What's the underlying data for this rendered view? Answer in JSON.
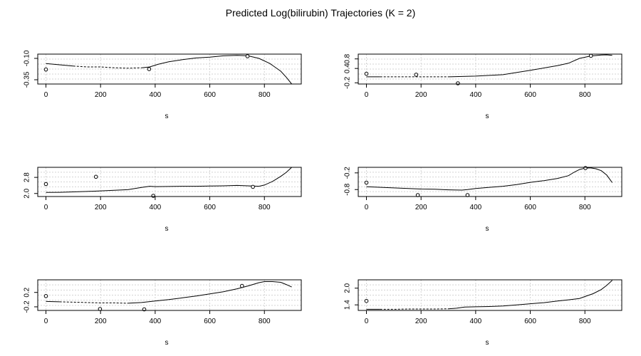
{
  "figure": {
    "title": "Predicted Log(bilirubin) Trajectories (K = 2)"
  },
  "chart_data": [
    {
      "type": "line",
      "xlabel": "s",
      "ylabel": "",
      "xlim": [
        -30,
        935
      ],
      "ylim": [
        -0.4,
        -0.05
      ],
      "xticks": [
        0,
        200,
        400,
        600,
        800
      ],
      "yticks": [
        -0.35,
        -0.1
      ],
      "ytick_labels": [
        "-0.35",
        "-0.10"
      ],
      "grid": true,
      "series": [
        {
          "style": "solid",
          "x": [
            0,
            100
          ],
          "y": [
            -0.16,
            -0.19
          ]
        },
        {
          "style": "dashed",
          "x": [
            100,
            150,
            200,
            250,
            300,
            350
          ],
          "y": [
            -0.19,
            -0.2,
            -0.2,
            -0.21,
            -0.215,
            -0.21
          ]
        },
        {
          "style": "solid",
          "x": [
            350,
            380,
            410,
            450,
            500,
            550,
            600,
            650,
            700,
            740,
            780,
            820,
            860,
            880,
            900
          ],
          "y": [
            -0.21,
            -0.2,
            -0.17,
            -0.14,
            -0.115,
            -0.095,
            -0.085,
            -0.07,
            -0.065,
            -0.07,
            -0.1,
            -0.16,
            -0.25,
            -0.32,
            -0.4
          ]
        }
      ],
      "points": {
        "x": [
          0,
          378,
          738
        ],
        "y": [
          -0.23,
          -0.225,
          -0.075
        ]
      }
    },
    {
      "type": "line",
      "xlabel": "s",
      "ylabel": "",
      "xlim": [
        -30,
        935
      ],
      "ylim": [
        -0.25,
        1.0
      ],
      "xticks": [
        0,
        200,
        400,
        600,
        800
      ],
      "yticks": [
        -0.2,
        0.4,
        0.8
      ],
      "ytick_labels": [
        "-0.2",
        "0.4",
        "0.8"
      ],
      "grid": true,
      "series": [
        {
          "style": "solid",
          "x": [
            0,
            50
          ],
          "y": [
            0.05,
            0.05
          ]
        },
        {
          "style": "dashed",
          "x": [
            50,
            100,
            150,
            200,
            250,
            300
          ],
          "y": [
            0.05,
            0.05,
            0.05,
            0.05,
            0.05,
            0.05
          ]
        },
        {
          "style": "solid",
          "x": [
            300,
            400,
            500,
            600,
            700,
            740,
            780,
            820,
            860,
            880,
            900
          ],
          "y": [
            0.05,
            0.08,
            0.14,
            0.32,
            0.52,
            0.62,
            0.82,
            0.92,
            0.96,
            0.97,
            0.95
          ]
        }
      ],
      "points": {
        "x": [
          0,
          182,
          335,
          822
        ],
        "y": [
          0.18,
          0.14,
          -0.22,
          0.93
        ]
      }
    },
    {
      "type": "line",
      "xlabel": "s",
      "ylabel": "",
      "xlim": [
        -30,
        935
      ],
      "ylim": [
        1.85,
        3.3
      ],
      "xticks": [
        0,
        200,
        400,
        600,
        800
      ],
      "yticks": [
        2.0,
        2.8
      ],
      "ytick_labels": [
        "2.0",
        "2.8"
      ],
      "grid": true,
      "series": [
        {
          "style": "solid",
          "x": [
            0,
            50,
            100,
            150,
            200,
            250,
            300,
            350,
            380,
            400,
            450,
            500,
            550,
            600,
            650,
            700,
            740,
            780,
            800,
            830,
            860,
            880,
            900
          ],
          "y": [
            2.05,
            2.06,
            2.08,
            2.1,
            2.13,
            2.16,
            2.19,
            2.3,
            2.36,
            2.34,
            2.35,
            2.36,
            2.36,
            2.37,
            2.38,
            2.4,
            2.38,
            2.36,
            2.42,
            2.6,
            2.85,
            3.05,
            3.3
          ]
        }
      ],
      "points": {
        "x": [
          0,
          183,
          393,
          758
        ],
        "y": [
          2.47,
          2.83,
          1.88,
          2.33
        ]
      }
    },
    {
      "type": "line",
      "xlabel": "s",
      "ylabel": "",
      "xlim": [
        -30,
        935
      ],
      "ylim": [
        -1.05,
        0.0
      ],
      "xticks": [
        0,
        200,
        400,
        600,
        800
      ],
      "yticks": [
        -0.8,
        -0.2
      ],
      "ytick_labels": [
        "-0.8",
        "-0.2"
      ],
      "grid": true,
      "series": [
        {
          "style": "solid",
          "x": [
            0,
            100,
            200,
            250,
            300,
            350,
            370,
            400,
            450,
            500,
            550,
            600,
            650,
            700,
            740,
            760,
            780,
            800,
            820,
            840,
            860,
            880,
            900
          ],
          "y": [
            -0.7,
            -0.74,
            -0.78,
            -0.79,
            -0.81,
            -0.82,
            -0.8,
            -0.76,
            -0.72,
            -0.68,
            -0.62,
            -0.54,
            -0.48,
            -0.4,
            -0.3,
            -0.18,
            -0.08,
            -0.03,
            -0.02,
            -0.05,
            -0.12,
            -0.28,
            -0.55
          ]
        }
      ],
      "points": {
        "x": [
          0,
          188,
          370,
          802
        ],
        "y": [
          -0.55,
          -1.0,
          -1.0,
          -0.01
        ]
      }
    },
    {
      "type": "line",
      "xlabel": "s",
      "ylabel": "",
      "xlim": [
        -30,
        935
      ],
      "ylim": [
        -0.3,
        0.55
      ],
      "xticks": [
        0,
        200,
        400,
        600,
        800
      ],
      "yticks": [
        -0.2,
        0.2
      ],
      "ytick_labels": [
        "-0.2",
        "0.2"
      ],
      "grid": true,
      "series": [
        {
          "style": "solid",
          "x": [
            0,
            50
          ],
          "y": [
            -0.05,
            -0.06
          ]
        },
        {
          "style": "dashed",
          "x": [
            50,
            100,
            150,
            200,
            250,
            300
          ],
          "y": [
            -0.06,
            -0.07,
            -0.08,
            -0.09,
            -0.09,
            -0.1
          ]
        },
        {
          "style": "solid",
          "x": [
            300,
            350,
            400,
            450,
            500,
            550,
            600,
            650,
            700,
            740,
            780,
            800,
            830,
            860,
            880,
            900
          ],
          "y": [
            -0.1,
            -0.08,
            -0.04,
            0.0,
            0.05,
            0.1,
            0.16,
            0.22,
            0.3,
            0.38,
            0.47,
            0.5,
            0.5,
            0.48,
            0.42,
            0.35
          ]
        }
      ],
      "points": {
        "x": [
          0,
          198,
          360,
          718
        ],
        "y": [
          0.1,
          -0.26,
          -0.27,
          0.38
        ]
      }
    },
    {
      "type": "line",
      "xlabel": "s",
      "ylabel": "",
      "xlim": [
        -30,
        935
      ],
      "ylim": [
        1.2,
        2.3
      ],
      "xticks": [
        0,
        200,
        400,
        600,
        800
      ],
      "yticks": [
        1.4,
        2.0
      ],
      "ytick_labels": [
        "1.4",
        "2.0"
      ],
      "grid": true,
      "series": [
        {
          "style": "solid",
          "x": [
            0,
            50
          ],
          "y": [
            1.24,
            1.24
          ]
        },
        {
          "style": "dashed",
          "x": [
            50,
            100,
            150,
            200,
            250,
            300
          ],
          "y": [
            1.24,
            1.24,
            1.25,
            1.25,
            1.25,
            1.26
          ]
        },
        {
          "style": "solid",
          "x": [
            300,
            330,
            360,
            400,
            450,
            500,
            550,
            600,
            650,
            700,
            740,
            780,
            800,
            830,
            860,
            880,
            900
          ],
          "y": [
            1.26,
            1.28,
            1.32,
            1.33,
            1.34,
            1.36,
            1.4,
            1.44,
            1.48,
            1.54,
            1.58,
            1.63,
            1.7,
            1.8,
            1.95,
            2.1,
            2.28
          ]
        }
      ],
      "points": {
        "x": [
          0
        ],
        "y": [
          1.54
        ]
      }
    }
  ]
}
